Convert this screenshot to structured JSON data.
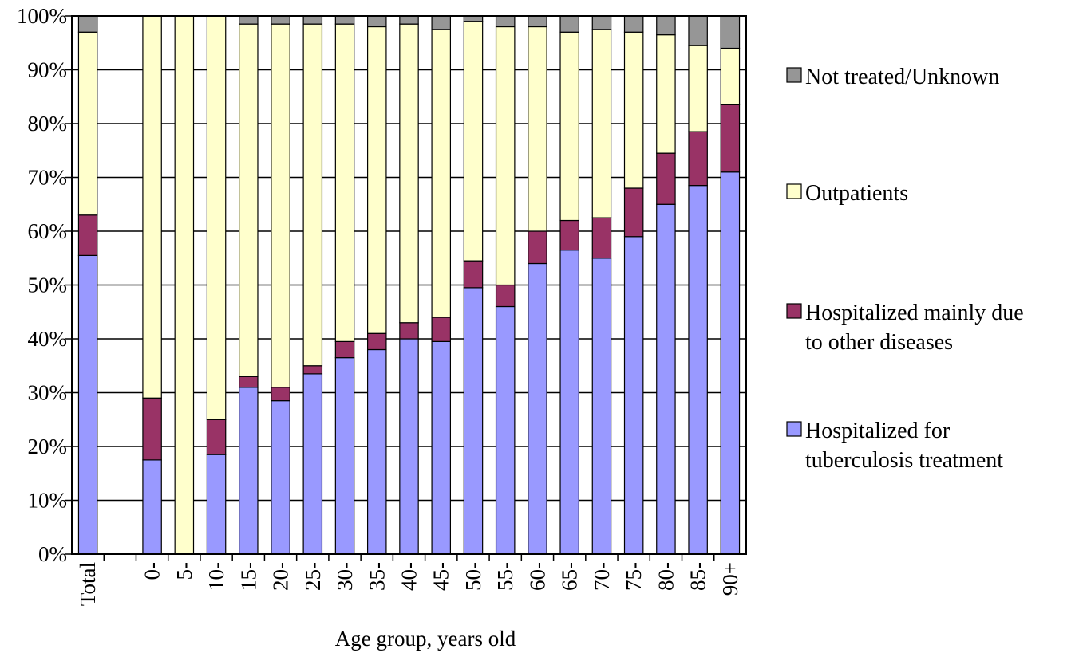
{
  "chart_data": {
    "type": "bar",
    "stacked": true,
    "percent_stacked": true,
    "categories": [
      "Total",
      "",
      "0-",
      "5-",
      "10-",
      "15-",
      "20-",
      "25-",
      "30-",
      "35-",
      "40-",
      "45-",
      "50-",
      "55-",
      "60-",
      "65-",
      "70-",
      "75-",
      "80-",
      "85-",
      "90+"
    ],
    "series": [
      {
        "name": "Hospitalized for tuberculosis treatment",
        "color": "#9999FF",
        "values": [
          55.5,
          null,
          17.5,
          0,
          18.5,
          31,
          28.5,
          33.5,
          36.5,
          38,
          40,
          39.5,
          49.5,
          46,
          54,
          56.5,
          55,
          59,
          65,
          68.5,
          71
        ]
      },
      {
        "name": "Hospitalized mainly due to other diseases",
        "color": "#993366",
        "values": [
          7.5,
          null,
          11.5,
          0,
          6.5,
          2,
          2.5,
          1.5,
          3,
          3,
          3,
          4.5,
          5,
          4,
          6,
          5.5,
          7.5,
          9,
          9.5,
          10,
          12.5
        ]
      },
      {
        "name": "Outpatients",
        "color": "#FFFFCC",
        "values": [
          34,
          null,
          71,
          100,
          75,
          65.5,
          67.5,
          63.5,
          59,
          57,
          55.5,
          53.5,
          44.5,
          48,
          38,
          35,
          35,
          29,
          22,
          16,
          10.5
        ]
      },
      {
        "name": "Not treated/Unknown",
        "color": "#969696",
        "values": [
          3,
          null,
          0,
          0,
          0,
          1.5,
          1.5,
          1.5,
          1.5,
          2,
          1.5,
          2.5,
          1,
          2,
          2,
          3,
          2.5,
          3,
          3.5,
          5.5,
          6
        ]
      }
    ],
    "legend_order": [
      "Not treated/Unknown",
      "Outpatients",
      "Hospitalized mainly due to other diseases",
      "Hospitalized for tuberculosis treatment"
    ],
    "legend_lines": [
      [
        "Not treated/Unknown"
      ],
      [
        "Outpatients"
      ],
      [
        "Hospitalized mainly due",
        "to other diseases"
      ],
      [
        "Hospitalized for",
        "tuberculosis treatment"
      ]
    ],
    "y_ticks": [
      "0%",
      "10%",
      "20%",
      "30%",
      "40%",
      "50%",
      "60%",
      "70%",
      "80%",
      "90%",
      "100%"
    ],
    "ylim": [
      0,
      100
    ],
    "xlabel": "Age group,  years old",
    "ylabel": "",
    "title": "",
    "grid": true,
    "legend_position": "right"
  }
}
